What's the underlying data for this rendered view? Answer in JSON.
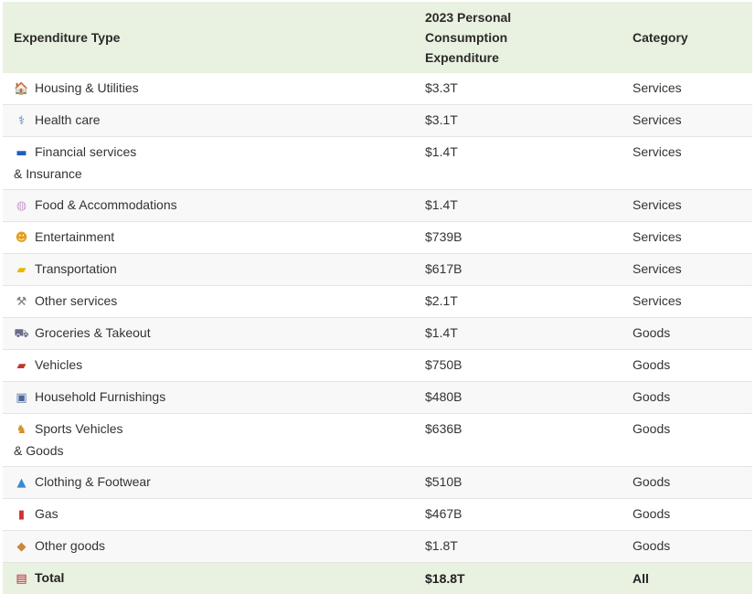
{
  "table": {
    "headers": {
      "type": "Expenditure Type",
      "value": "2023 Personal Consumption Expenditure",
      "category": "Category"
    },
    "rows": [
      {
        "icon": "house-icon",
        "glyph": "🏠",
        "color": "#d2691e",
        "type": "Housing & Utilities",
        "value": "$3.3T",
        "category": "Services"
      },
      {
        "icon": "stethoscope-icon",
        "glyph": "⚕",
        "color": "#4a7ab5",
        "type": "Health care",
        "value": "$3.1T",
        "category": "Services"
      },
      {
        "icon": "credit-card-icon",
        "glyph": "▬",
        "color": "#1f5fbf",
        "type": "Financial services & Insurance",
        "value": "$1.4T",
        "category": "Services"
      },
      {
        "icon": "plate-icon",
        "glyph": "◍",
        "color": "#c9a0c9",
        "type": "Food & Accommodations",
        "value": "$1.4T",
        "category": "Services"
      },
      {
        "icon": "theater-masks-icon",
        "glyph": "☻",
        "color": "#e0a020",
        "type": "Entertainment",
        "value": "$739B",
        "category": "Services"
      },
      {
        "icon": "taxi-icon",
        "glyph": "▰",
        "color": "#e8b800",
        "type": "Transportation",
        "value": "$617B",
        "category": "Services"
      },
      {
        "icon": "tools-icon",
        "glyph": "⚒",
        "color": "#7a7a7a",
        "type": "Other services",
        "value": "$2.1T",
        "category": "Services"
      },
      {
        "icon": "shopping-cart-icon",
        "glyph": "⛟",
        "color": "#6a6a8a",
        "type": "Groceries & Takeout",
        "value": "$1.4T",
        "category": "Goods"
      },
      {
        "icon": "car-icon",
        "glyph": "▰",
        "color": "#c0392b",
        "type": "Vehicles",
        "value": "$750B",
        "category": "Goods"
      },
      {
        "icon": "tv-icon",
        "glyph": "▣",
        "color": "#4a6a9a",
        "type": "Household Furnishings",
        "value": "$480B",
        "category": "Goods"
      },
      {
        "icon": "bicycle-icon",
        "glyph": "♞",
        "color": "#d09020",
        "type": "Sports Vehicles & Goods",
        "value": "$636B",
        "category": "Goods"
      },
      {
        "icon": "dress-icon",
        "glyph": "▲",
        "color": "#3a8ad0",
        "type": "Clothing & Footwear",
        "value": "$510B",
        "category": "Goods"
      },
      {
        "icon": "fuel-pump-icon",
        "glyph": "▮",
        "color": "#d03030",
        "type": "Gas",
        "value": "$467B",
        "category": "Goods"
      },
      {
        "icon": "package-icon",
        "glyph": "◆",
        "color": "#c8883a",
        "type": "Other goods",
        "value": "$1.8T",
        "category": "Goods"
      }
    ],
    "total": {
      "icon": "us-flag-icon",
      "glyph": "▤",
      "color": "#b22234",
      "type": "Total",
      "value": "$18.8T",
      "category": "All"
    }
  }
}
